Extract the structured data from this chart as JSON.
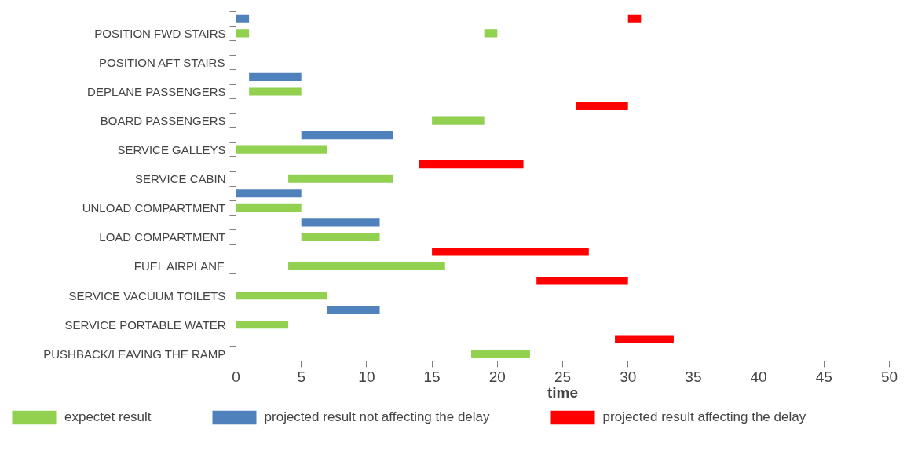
{
  "chart_data": {
    "type": "bar",
    "orientation": "horizontal",
    "xlabel": "time",
    "categories": [
      null,
      "POSITION FWD STAIRS",
      null,
      "POSITION AFT STAIRS",
      null,
      "DEPLANE PASSENGERS",
      null,
      "BOARD PASSENGERS",
      null,
      "SERVICE GALLEYS",
      null,
      "SERVICE CABIN",
      null,
      "UNLOAD COMPARTMENT",
      null,
      "LOAD COMPARTMENT",
      null,
      "FUEL AIRPLANE",
      null,
      "SERVICE VACUUM TOILETS",
      null,
      "SERVICE PORTABLE WATER",
      null,
      "PUSHBACK/LEAVING THE RAMP"
    ],
    "series": [
      {
        "name": "expectet result",
        "color": "#92d050",
        "base": [
          null,
          0,
          null,
          null,
          null,
          1,
          null,
          15,
          null,
          0,
          null,
          4,
          null,
          0,
          null,
          5,
          null,
          4,
          null,
          0,
          null,
          0,
          null,
          18
        ],
        "values": [
          null,
          1,
          null,
          null,
          null,
          4,
          null,
          4,
          null,
          7,
          null,
          8,
          null,
          5,
          null,
          6,
          null,
          12,
          null,
          7,
          null,
          4,
          null,
          4.5
        ]
      },
      {
        "color": "#92d050",
        "base": [
          null,
          19,
          null,
          null,
          null,
          null,
          null,
          null,
          null,
          null,
          null,
          null,
          null,
          null,
          null,
          null,
          null,
          null,
          null,
          null,
          null,
          null,
          null,
          null
        ],
        "values": [
          null,
          1,
          null,
          null,
          null,
          null,
          null,
          null,
          null,
          null,
          null,
          null,
          null,
          null,
          null,
          null,
          null,
          null,
          null,
          null,
          null,
          null,
          null,
          null
        ]
      },
      {
        "name": "projected result not affecting the delay",
        "color": "#4f81bd",
        "base": [
          0,
          null,
          null,
          null,
          1,
          null,
          null,
          null,
          5,
          null,
          null,
          null,
          0,
          null,
          5,
          null,
          null,
          null,
          null,
          null,
          7,
          null,
          null,
          null
        ],
        "values": [
          1,
          null,
          null,
          null,
          4,
          null,
          null,
          null,
          7,
          null,
          null,
          null,
          5,
          null,
          6,
          null,
          null,
          null,
          null,
          null,
          4,
          null,
          null,
          null
        ]
      },
      {
        "name": "projected result affecting the delay",
        "color": "#ff0000",
        "base": [
          30,
          null,
          null,
          null,
          null,
          null,
          26,
          null,
          null,
          null,
          14,
          null,
          null,
          null,
          null,
          null,
          15,
          null,
          23,
          null,
          null,
          null,
          29,
          null
        ],
        "values": [
          1,
          null,
          null,
          null,
          null,
          null,
          4,
          null,
          null,
          null,
          8,
          null,
          null,
          null,
          null,
          null,
          12,
          null,
          7,
          null,
          null,
          null,
          4.5,
          null
        ]
      }
    ],
    "xlim": [
      0,
      50
    ],
    "xticks": [
      0,
      5,
      10,
      15,
      20,
      25,
      30,
      35,
      40,
      45,
      50
    ],
    "grid": false,
    "legend": "bottom"
  }
}
